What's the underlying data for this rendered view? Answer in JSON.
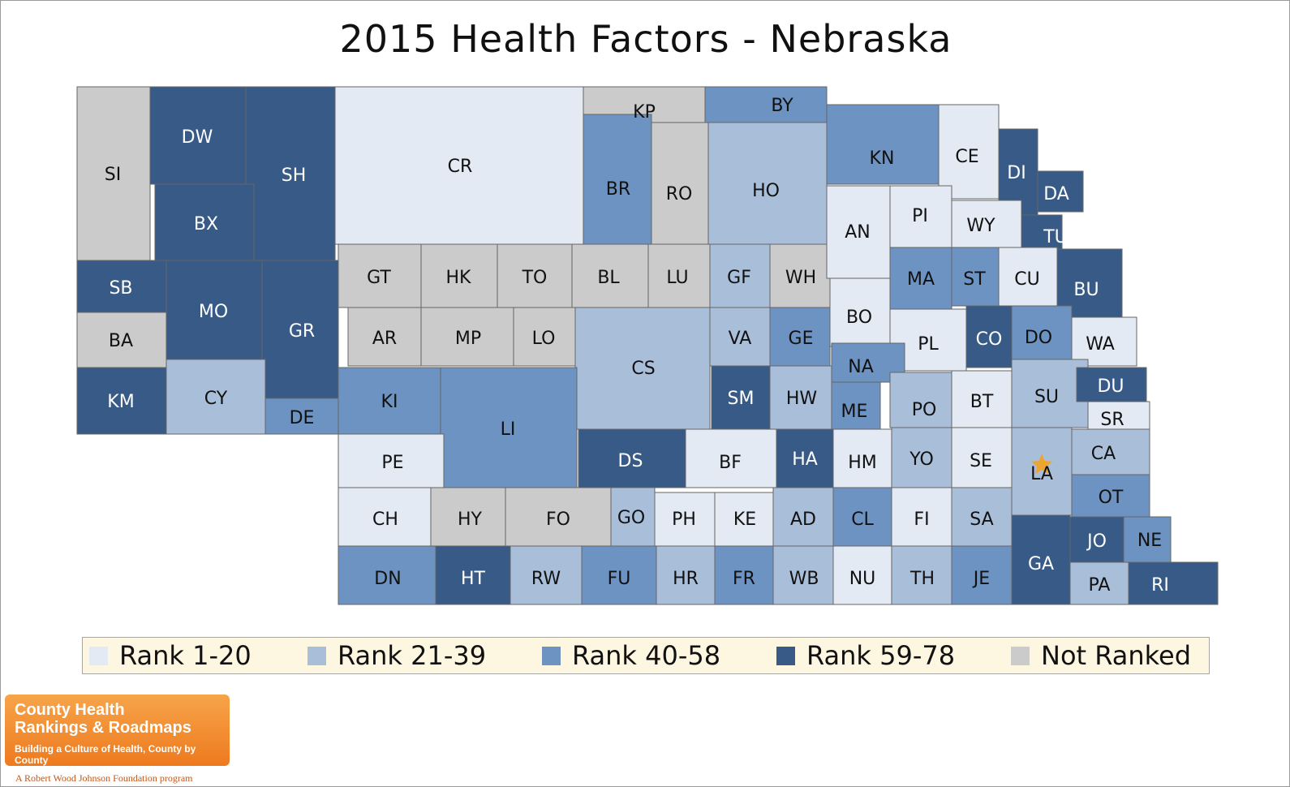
{
  "title": "2015 Health Factors - Nebraska",
  "colors": {
    "rank_1_20": "#e3eaf4",
    "rank_21_39": "#a9bed9",
    "rank_40_58": "#6d93c2",
    "rank_59_78": "#385a87",
    "not_ranked": "#cbcbcb",
    "county_seat_star": "#f4a21c"
  },
  "legend": [
    {
      "key": "rank_1_20",
      "label": "Rank 1-20"
    },
    {
      "key": "rank_21_39",
      "label": "Rank 21-39"
    },
    {
      "key": "rank_40_58",
      "label": "Rank 40-58"
    },
    {
      "key": "rank_59_78",
      "label": "Rank 59-78"
    },
    {
      "key": "not_ranked",
      "label": "Not Ranked"
    }
  ],
  "counties": [
    {
      "abbr": "SI",
      "category": "not_ranked"
    },
    {
      "abbr": "DW",
      "category": "rank_59_78"
    },
    {
      "abbr": "SH",
      "category": "rank_59_78"
    },
    {
      "abbr": "BX",
      "category": "rank_59_78"
    },
    {
      "abbr": "CR",
      "category": "rank_1_20"
    },
    {
      "abbr": "KP",
      "category": "not_ranked"
    },
    {
      "abbr": "BY",
      "category": "rank_40_58"
    },
    {
      "abbr": "BR",
      "category": "rank_40_58"
    },
    {
      "abbr": "RO",
      "category": "not_ranked"
    },
    {
      "abbr": "HO",
      "category": "rank_21_39"
    },
    {
      "abbr": "KN",
      "category": "rank_40_58"
    },
    {
      "abbr": "CE",
      "category": "rank_1_20"
    },
    {
      "abbr": "DI",
      "category": "rank_59_78"
    },
    {
      "abbr": "DA",
      "category": "rank_59_78"
    },
    {
      "abbr": "SB",
      "category": "rank_59_78"
    },
    {
      "abbr": "MO",
      "category": "rank_59_78"
    },
    {
      "abbr": "GR",
      "category": "rank_59_78"
    },
    {
      "abbr": "BA",
      "category": "not_ranked"
    },
    {
      "abbr": "KM",
      "category": "rank_59_78"
    },
    {
      "abbr": "CY",
      "category": "rank_21_39"
    },
    {
      "abbr": "DE",
      "category": "rank_40_58"
    },
    {
      "abbr": "GT",
      "category": "not_ranked"
    },
    {
      "abbr": "HK",
      "category": "not_ranked"
    },
    {
      "abbr": "TO",
      "category": "not_ranked"
    },
    {
      "abbr": "BL",
      "category": "not_ranked"
    },
    {
      "abbr": "LU",
      "category": "not_ranked"
    },
    {
      "abbr": "GF",
      "category": "rank_21_39"
    },
    {
      "abbr": "WH",
      "category": "not_ranked"
    },
    {
      "abbr": "AN",
      "category": "rank_1_20"
    },
    {
      "abbr": "PI",
      "category": "rank_1_20"
    },
    {
      "abbr": "WY",
      "category": "rank_1_20"
    },
    {
      "abbr": "TU",
      "category": "rank_59_78"
    },
    {
      "abbr": "MA",
      "category": "rank_40_58"
    },
    {
      "abbr": "ST",
      "category": "rank_40_58"
    },
    {
      "abbr": "CU",
      "category": "rank_1_20"
    },
    {
      "abbr": "BU",
      "category": "rank_59_78"
    },
    {
      "abbr": "AR",
      "category": "not_ranked"
    },
    {
      "abbr": "MP",
      "category": "not_ranked"
    },
    {
      "abbr": "LO",
      "category": "not_ranked"
    },
    {
      "abbr": "CS",
      "category": "rank_21_39"
    },
    {
      "abbr": "VA",
      "category": "rank_21_39"
    },
    {
      "abbr": "GE",
      "category": "rank_40_58"
    },
    {
      "abbr": "BO",
      "category": "rank_1_20"
    },
    {
      "abbr": "PL",
      "category": "rank_1_20"
    },
    {
      "abbr": "CO",
      "category": "rank_59_78"
    },
    {
      "abbr": "DO",
      "category": "rank_40_58"
    },
    {
      "abbr": "WA",
      "category": "rank_1_20"
    },
    {
      "abbr": "KI",
      "category": "rank_40_58"
    },
    {
      "abbr": "LI",
      "category": "rank_40_58"
    },
    {
      "abbr": "SM",
      "category": "rank_59_78"
    },
    {
      "abbr": "HW",
      "category": "rank_21_39"
    },
    {
      "abbr": "NA",
      "category": "rank_40_58"
    },
    {
      "abbr": "ME",
      "category": "rank_40_58"
    },
    {
      "abbr": "PO",
      "category": "rank_21_39"
    },
    {
      "abbr": "BT",
      "category": "rank_1_20"
    },
    {
      "abbr": "SU",
      "category": "rank_21_39"
    },
    {
      "abbr": "DU",
      "category": "rank_59_78"
    },
    {
      "abbr": "SR",
      "category": "rank_1_20"
    },
    {
      "abbr": "PE",
      "category": "rank_1_20"
    },
    {
      "abbr": "DS",
      "category": "rank_59_78"
    },
    {
      "abbr": "BF",
      "category": "rank_1_20"
    },
    {
      "abbr": "HA",
      "category": "rank_59_78"
    },
    {
      "abbr": "HM",
      "category": "rank_1_20"
    },
    {
      "abbr": "YO",
      "category": "rank_21_39"
    },
    {
      "abbr": "SE",
      "category": "rank_1_20"
    },
    {
      "abbr": "LA",
      "category": "rank_21_39"
    },
    {
      "abbr": "CA",
      "category": "rank_21_39"
    },
    {
      "abbr": "CH",
      "category": "rank_1_20"
    },
    {
      "abbr": "HY",
      "category": "not_ranked"
    },
    {
      "abbr": "FO",
      "category": "not_ranked"
    },
    {
      "abbr": "GO",
      "category": "rank_21_39"
    },
    {
      "abbr": "PH",
      "category": "rank_1_20"
    },
    {
      "abbr": "KE",
      "category": "rank_1_20"
    },
    {
      "abbr": "AD",
      "category": "rank_21_39"
    },
    {
      "abbr": "CL",
      "category": "rank_40_58"
    },
    {
      "abbr": "FI",
      "category": "rank_1_20"
    },
    {
      "abbr": "SA",
      "category": "rank_21_39"
    },
    {
      "abbr": "OT",
      "category": "rank_40_58"
    },
    {
      "abbr": "JO",
      "category": "rank_59_78"
    },
    {
      "abbr": "NE",
      "category": "rank_40_58"
    },
    {
      "abbr": "DN",
      "category": "rank_40_58"
    },
    {
      "abbr": "HT",
      "category": "rank_59_78"
    },
    {
      "abbr": "RW",
      "category": "rank_21_39"
    },
    {
      "abbr": "FU",
      "category": "rank_40_58"
    },
    {
      "abbr": "HR",
      "category": "rank_21_39"
    },
    {
      "abbr": "FR",
      "category": "rank_40_58"
    },
    {
      "abbr": "WB",
      "category": "rank_21_39"
    },
    {
      "abbr": "NU",
      "category": "rank_1_20"
    },
    {
      "abbr": "TH",
      "category": "rank_21_39"
    },
    {
      "abbr": "JE",
      "category": "rank_40_58"
    },
    {
      "abbr": "GA",
      "category": "rank_59_78"
    },
    {
      "abbr": "PA",
      "category": "rank_21_39"
    },
    {
      "abbr": "RI",
      "category": "rank_59_78"
    }
  ],
  "logo": {
    "line1": "County Health",
    "line2": "Rankings & Roadmaps",
    "tagline": "Building a Culture of Health, County by County",
    "foundation": "A Robert Wood Johnson Foundation program"
  }
}
